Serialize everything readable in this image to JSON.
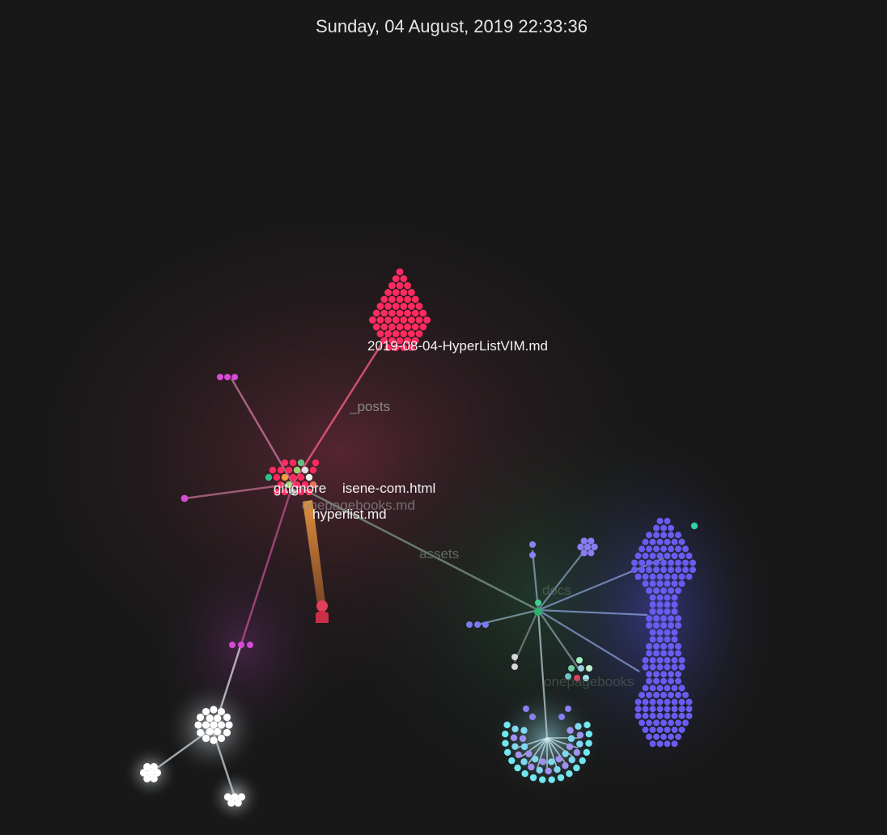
{
  "timestamp": "Sunday, 04 August, 2019 22:33:36",
  "colors": {
    "background": "#181818",
    "posts": "#ff2a5f",
    "magenta": "#d84ad8",
    "white": "#ffffff",
    "blue": "#6a5cf0",
    "cyan": "#56e0e8",
    "green": "#3fcf8a",
    "orange": "#f0a040",
    "person": "#e0405a"
  },
  "labels": {
    "file_hyperlistvim": "2019-08-04-HyperListVIM.md",
    "dir_posts": "_posts",
    "file_gitignore": "gitignore",
    "file_isene_com": "isene-com.html",
    "file_onepagebooks": "onepagebooks.md",
    "file_hyperlist": "hyperlist.md",
    "dir_assets": "assets",
    "dir_docs": "docs",
    "dir_onepagebooks": "onepagebooks"
  },
  "icons": {
    "user": "person-icon"
  }
}
